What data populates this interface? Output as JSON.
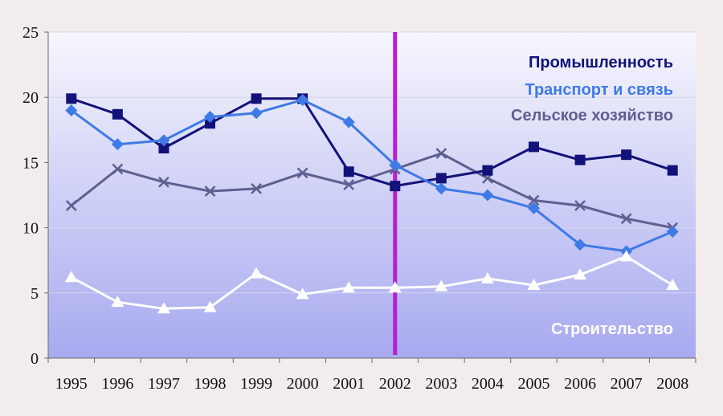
{
  "chart_data": {
    "type": "line",
    "x": [
      "1995",
      "1996",
      "1997",
      "1998",
      "1999",
      "2000",
      "2001",
      "2002",
      "2003",
      "2004",
      "2005",
      "2006",
      "2007",
      "2008"
    ],
    "ylim": [
      0,
      25
    ],
    "yticks": [
      "0",
      "5",
      "10",
      "15",
      "20",
      "25"
    ],
    "grid": true,
    "marker_year": "2002",
    "series": [
      {
        "name": "Промышленность",
        "color": "#12127a",
        "marker": "square",
        "values": [
          19.9,
          18.7,
          16.1,
          18.0,
          19.9,
          19.9,
          14.3,
          13.2,
          13.8,
          14.4,
          16.2,
          15.2,
          15.6,
          14.4
        ]
      },
      {
        "name": "Транспорт и связь",
        "color": "#3f7ae6",
        "marker": "diamond",
        "values": [
          19.0,
          16.4,
          16.7,
          18.5,
          18.8,
          19.8,
          18.1,
          14.8,
          13.0,
          12.5,
          11.5,
          8.7,
          8.2,
          9.7
        ]
      },
      {
        "name": "Сельское хозяйство",
        "color": "#5f5f90",
        "marker": "x",
        "values": [
          11.7,
          14.5,
          13.5,
          12.8,
          13.0,
          14.2,
          13.3,
          14.5,
          15.7,
          13.8,
          12.1,
          11.7,
          10.7,
          10.0
        ]
      },
      {
        "name": "Строительство",
        "color": "#ffffff",
        "marker": "triangle",
        "values": [
          6.2,
          4.3,
          3.8,
          3.9,
          6.5,
          4.9,
          5.4,
          5.4,
          5.5,
          6.1,
          5.6,
          6.4,
          7.8,
          5.6
        ]
      }
    ]
  }
}
